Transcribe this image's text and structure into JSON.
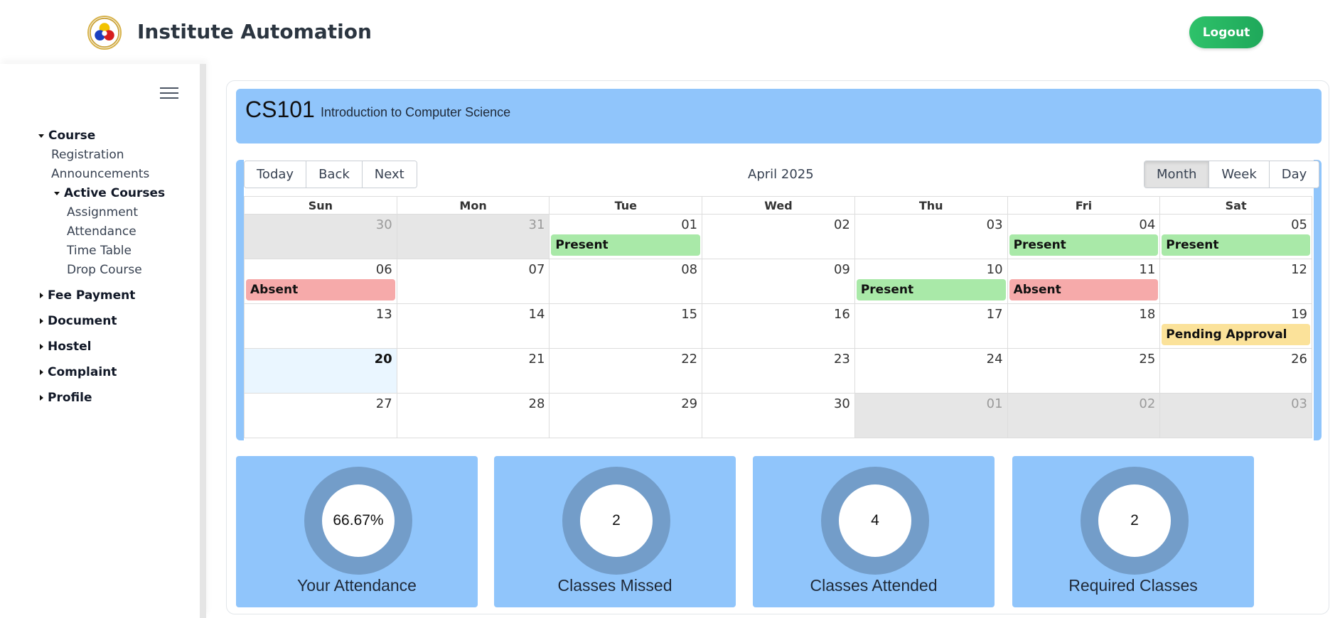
{
  "header": {
    "title": "Institute Automation",
    "logout_label": "Logout"
  },
  "sidebar": {
    "items": [
      {
        "label": "Course",
        "expanded": true
      },
      {
        "label": "Registration"
      },
      {
        "label": "Announcements"
      },
      {
        "label": "Active Courses",
        "expanded": true
      },
      {
        "label": "Assignment"
      },
      {
        "label": "Attendance"
      },
      {
        "label": "Time Table"
      },
      {
        "label": "Drop Course"
      },
      {
        "label": "Fee Payment",
        "expanded": false
      },
      {
        "label": "Document",
        "expanded": false
      },
      {
        "label": "Hostel",
        "expanded": false
      },
      {
        "label": "Complaint",
        "expanded": false
      },
      {
        "label": "Profile",
        "expanded": false
      }
    ]
  },
  "course": {
    "code": "CS101",
    "name": "Introduction to Computer Science"
  },
  "calendar": {
    "nav_buttons": [
      "Today",
      "Back",
      "Next"
    ],
    "view_buttons": [
      "Month",
      "Week",
      "Day"
    ],
    "active_view": "Month",
    "month_label": "April 2025",
    "weekdays": [
      "Sun",
      "Mon",
      "Tue",
      "Wed",
      "Thu",
      "Fri",
      "Sat"
    ],
    "weeks": [
      [
        {
          "d": "30",
          "off": true
        },
        {
          "d": "31",
          "off": true
        },
        {
          "d": "01",
          "event": "Present",
          "type": "present"
        },
        {
          "d": "02"
        },
        {
          "d": "03"
        },
        {
          "d": "04",
          "event": "Present",
          "type": "present"
        },
        {
          "d": "05",
          "event": "Present",
          "type": "present"
        }
      ],
      [
        {
          "d": "06",
          "event": "Absent",
          "type": "absent"
        },
        {
          "d": "07"
        },
        {
          "d": "08"
        },
        {
          "d": "09"
        },
        {
          "d": "10",
          "event": "Present",
          "type": "present"
        },
        {
          "d": "11",
          "event": "Absent",
          "type": "absent"
        },
        {
          "d": "12"
        }
      ],
      [
        {
          "d": "13"
        },
        {
          "d": "14"
        },
        {
          "d": "15"
        },
        {
          "d": "16"
        },
        {
          "d": "17"
        },
        {
          "d": "18"
        },
        {
          "d": "19",
          "event": "Pending Approval",
          "type": "pending"
        }
      ],
      [
        {
          "d": "20",
          "today": true
        },
        {
          "d": "21"
        },
        {
          "d": "22"
        },
        {
          "d": "23"
        },
        {
          "d": "24"
        },
        {
          "d": "25"
        },
        {
          "d": "26"
        }
      ],
      [
        {
          "d": "27"
        },
        {
          "d": "28"
        },
        {
          "d": "29"
        },
        {
          "d": "30"
        },
        {
          "d": "01",
          "off": true
        },
        {
          "d": "02",
          "off": true
        },
        {
          "d": "03",
          "off": true
        }
      ]
    ]
  },
  "stats": [
    {
      "value": "66.67%",
      "label": "Your Attendance"
    },
    {
      "value": "2",
      "label": "Classes Missed"
    },
    {
      "value": "4",
      "label": "Classes Attended"
    },
    {
      "value": "2",
      "label": "Required Classes"
    }
  ],
  "colors": {
    "accent_blue": "#90c5fb",
    "ring_blue": "#739dc9",
    "present": "#a9e9a8",
    "absent": "#f6aaaa",
    "pending": "#fbe29a",
    "logout_green": "#22b35f"
  }
}
